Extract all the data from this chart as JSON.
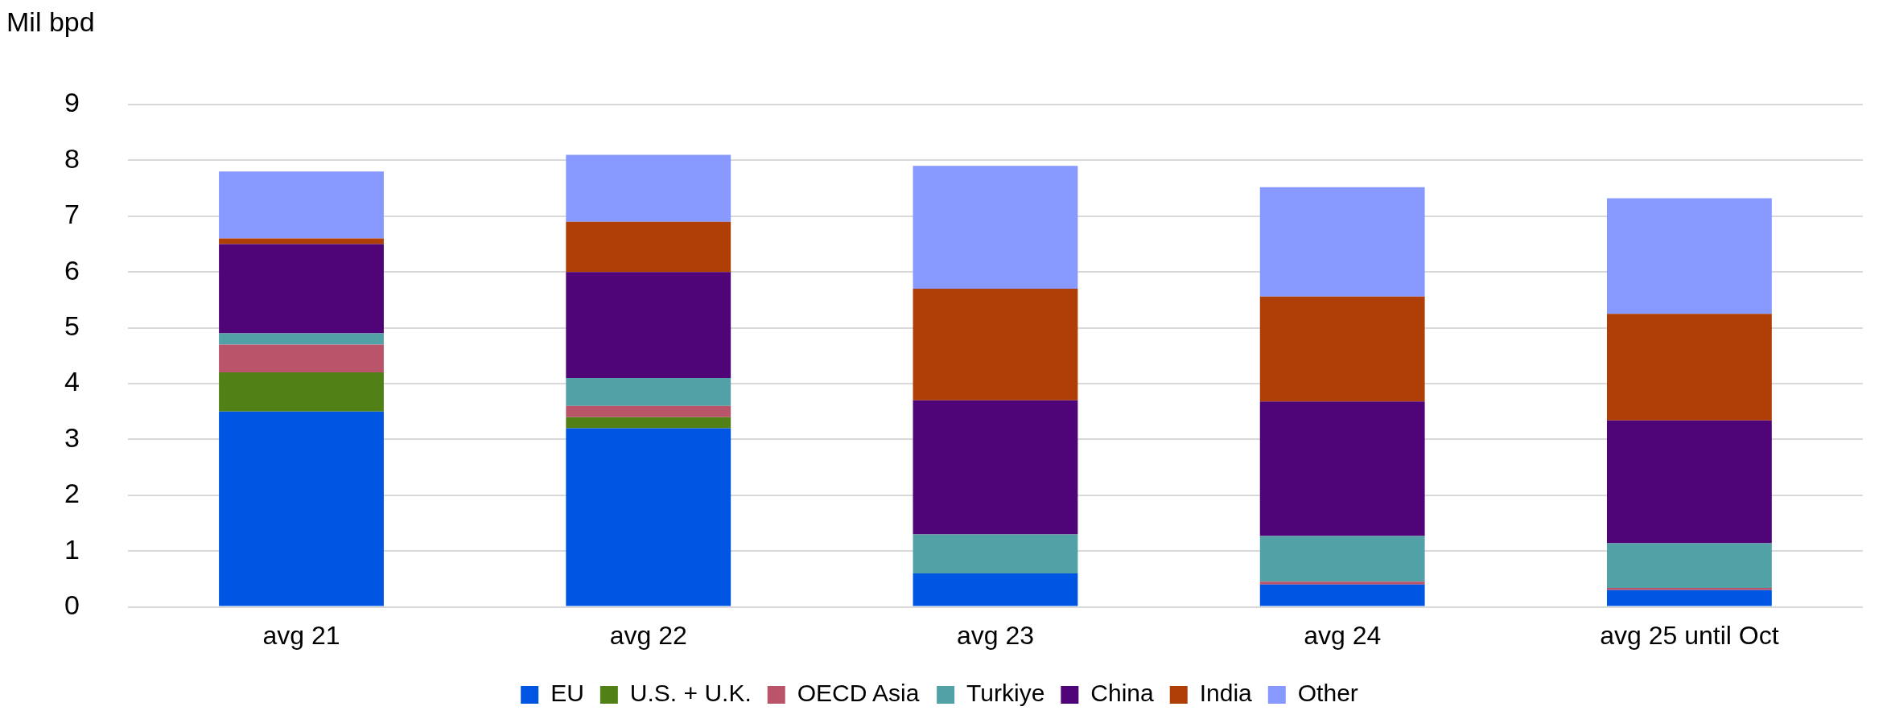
{
  "chart_data": {
    "type": "bar",
    "stacked": true,
    "ylabel": "Mil bpd",
    "categories": [
      "avg 21",
      "avg 22",
      "avg 23",
      "avg 24",
      "avg 25 until Oct"
    ],
    "series": [
      {
        "name": "EU",
        "color": "#0055e3",
        "values": [
          3.5,
          3.2,
          0.6,
          0.4,
          0.3
        ]
      },
      {
        "name": "U.S. + U.K.",
        "color": "#518016",
        "values": [
          0.7,
          0.2,
          0,
          0,
          0
        ]
      },
      {
        "name": "OECD Asia",
        "color": "#b9546a",
        "values": [
          0.5,
          0.2,
          0,
          0.05,
          0.04
        ]
      },
      {
        "name": "Turkiye",
        "color": "#52a1a6",
        "values": [
          0.2,
          0.5,
          0.7,
          0.82,
          0.8
        ]
      },
      {
        "name": "China",
        "color": "#4f0577",
        "values": [
          1.6,
          1.9,
          2.4,
          2.41,
          2.2
        ]
      },
      {
        "name": "India",
        "color": "#af3e07",
        "values": [
          0.1,
          0.9,
          2.0,
          1.88,
          1.91
        ]
      },
      {
        "name": "Other",
        "color": "#8799ff",
        "values": [
          1.2,
          1.2,
          2.2,
          1.96,
          2.07
        ]
      }
    ],
    "ylim": [
      0,
      9
    ],
    "yticks": [
      0,
      1,
      2,
      3,
      4,
      5,
      6,
      7,
      8,
      9
    ],
    "grid": "y",
    "legend": "bottom"
  }
}
